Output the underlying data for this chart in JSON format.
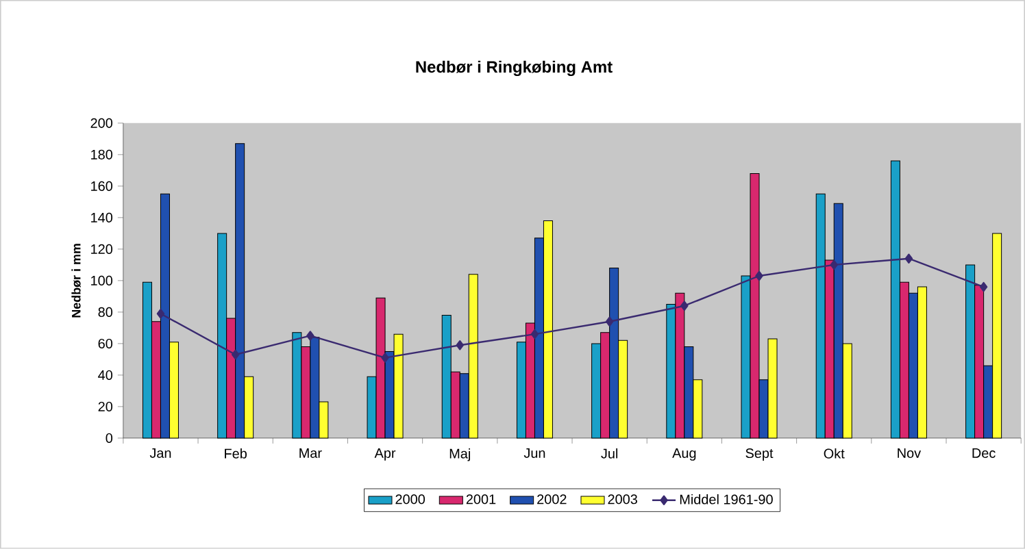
{
  "chart_data": {
    "type": "bar",
    "title": "Nedbør i Ringkøbing Amt",
    "ylabel": "Nedbør i mm",
    "categories": [
      "Jan",
      "Feb",
      "Mar",
      "Apr",
      "Maj",
      "Jun",
      "Jul",
      "Aug",
      "Sept",
      "Okt",
      "Nov",
      "Dec"
    ],
    "series": [
      {
        "name": "2000",
        "color": "#1aa0c8",
        "values": [
          99,
          130,
          67,
          39,
          78,
          61,
          60,
          85,
          103,
          155,
          176,
          110
        ]
      },
      {
        "name": "2001",
        "color": "#d8286e",
        "values": [
          74,
          76,
          58,
          89,
          42,
          73,
          67,
          92,
          168,
          113,
          99,
          97
        ]
      },
      {
        "name": "2002",
        "color": "#2050b0",
        "values": [
          155,
          187,
          64,
          55,
          41,
          127,
          108,
          58,
          37,
          149,
          92,
          46
        ]
      },
      {
        "name": "2003",
        "color": "#ffff30",
        "values": [
          61,
          39,
          23,
          66,
          104,
          138,
          62,
          37,
          63,
          60,
          96,
          130
        ]
      },
      {
        "name": "Middel 1961-90",
        "type": "line",
        "marker": "diamond",
        "color": "#3a2a70",
        "values": [
          79,
          53,
          65,
          51,
          59,
          66,
          74,
          84,
          103,
          110,
          114,
          96
        ]
      }
    ],
    "ylim": [
      0,
      200
    ],
    "yticks": [
      0,
      20,
      40,
      60,
      80,
      100,
      120,
      140,
      160,
      180,
      200
    ],
    "grid": false,
    "legend": "bottom"
  }
}
